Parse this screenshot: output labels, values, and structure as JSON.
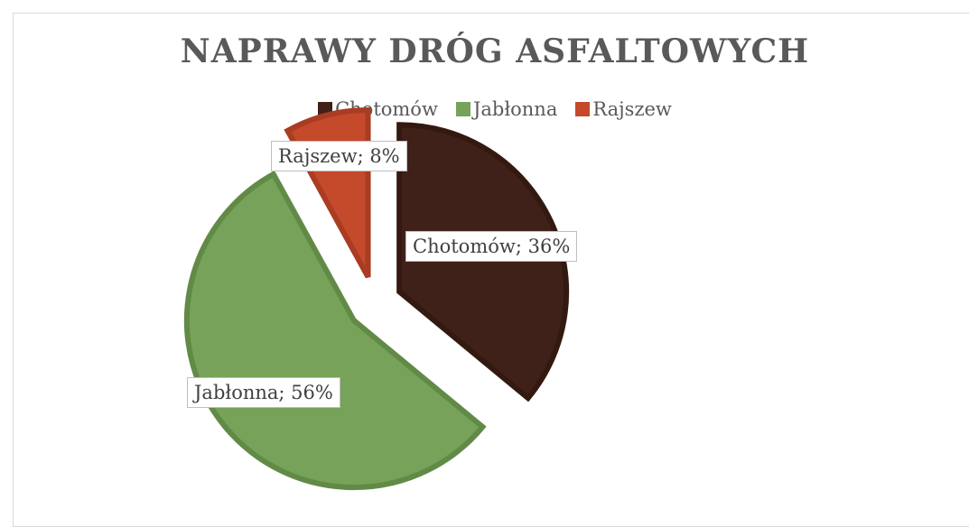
{
  "chart_data": {
    "type": "pie",
    "title": "NAPRAWY DRÓG ASFALTOWYCH",
    "legend_position": "top",
    "categories": [
      "Chotomów",
      "Jabłonna",
      "Rajszew"
    ],
    "values": [
      36,
      56,
      8
    ],
    "unit": "%",
    "colors": [
      "#3f211a",
      "#77a25a",
      "#c5492b"
    ],
    "data_labels": [
      "Chotomów; 36%",
      "Jabłonna; 56%",
      "Rajszew; 8%"
    ]
  }
}
